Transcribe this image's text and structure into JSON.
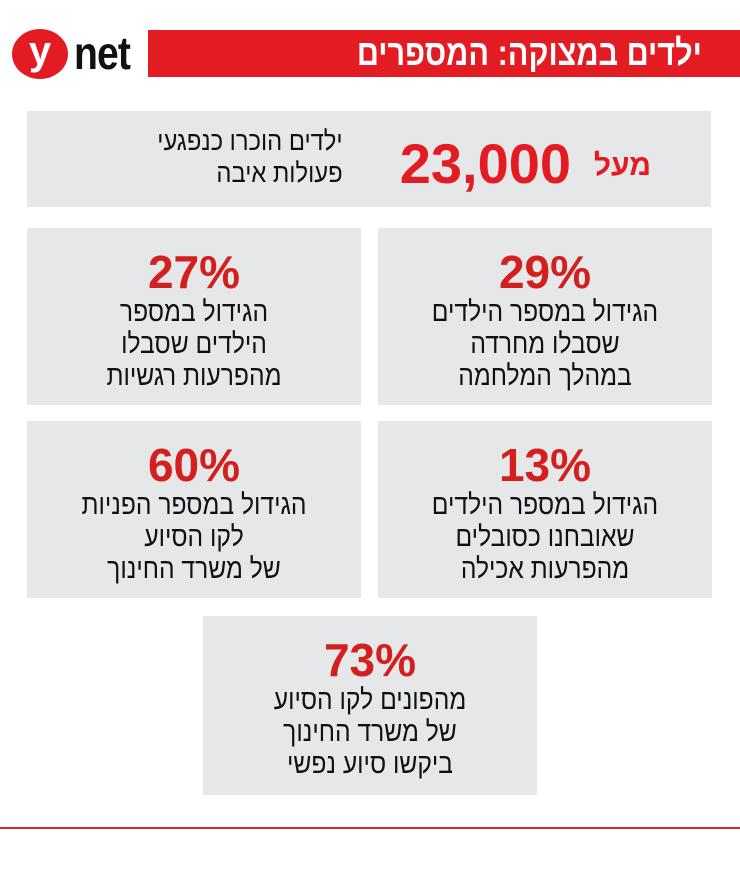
{
  "logo": {
    "letter": "y",
    "text": "net"
  },
  "header": {
    "title": "ילדים במצוקה: המספרים"
  },
  "top_stat": {
    "prefix": "מעל",
    "value": "23,000",
    "lines": [
      "ילדים הוכרו כנפגעי",
      "פעולות איבה"
    ]
  },
  "stats": [
    {
      "value": "29%",
      "lines": [
        "הגידול במספר הילדים",
        "שסבלו מחרדה",
        "במהלך המלחמה"
      ]
    },
    {
      "value": "27%",
      "lines": [
        "הגידול במספר",
        "הילדים שסבלו",
        "מהפרעות רגשיות"
      ]
    },
    {
      "value": "13%",
      "lines": [
        "הגידול במספר הילדים",
        "שאובחנו כסובלים",
        "מהפרעות אכילה"
      ]
    },
    {
      "value": "60%",
      "lines": [
        "הגידול במספר הפניות",
        "לקו הסיוע",
        "של משרד החינוך"
      ]
    },
    {
      "value": "73%",
      "lines": [
        "מהפונים לקו הסיוע",
        "של משרד החינוך",
        "ביקשו סיוע נפשי"
      ]
    }
  ],
  "colors": {
    "accent": "#e31b23",
    "box": "#e6e7e9"
  }
}
